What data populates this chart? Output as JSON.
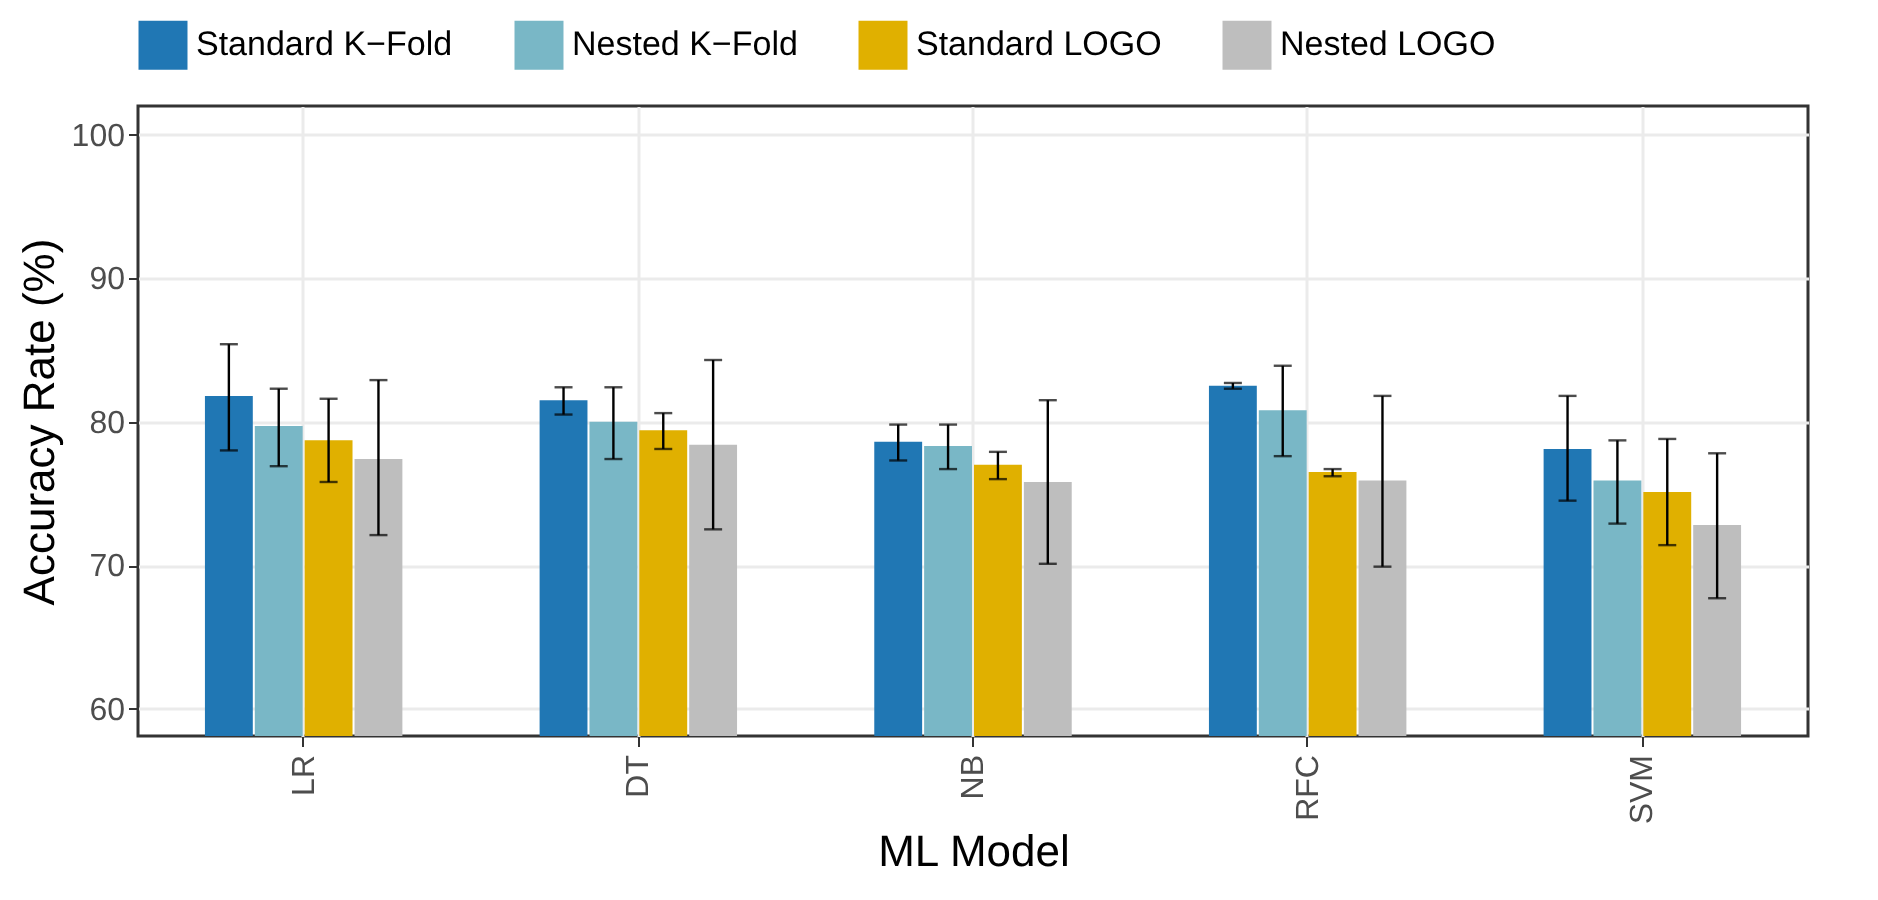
{
  "chart_data": {
    "type": "bar",
    "xlabel": "ML Model",
    "ylabel": "Accuracy Rate (%)",
    "categories": [
      "LR",
      "DT",
      "NB",
      "RFC",
      "SVM"
    ],
    "series": [
      {
        "name": "Standard K−Fold",
        "color": "#2077b4",
        "values": [
          81.8,
          81.5,
          78.6,
          82.5,
          78.1
        ],
        "errors": [
          [
            78.0,
            85.4
          ],
          [
            80.5,
            82.4
          ],
          [
            77.3,
            79.8
          ],
          [
            82.3,
            82.7
          ],
          [
            74.5,
            81.8
          ]
        ]
      },
      {
        "name": "Nested K−Fold",
        "color": "#79b7c6",
        "values": [
          79.7,
          80.0,
          78.3,
          80.8,
          75.9
        ],
        "errors": [
          [
            76.9,
            82.3
          ],
          [
            77.4,
            82.4
          ],
          [
            76.7,
            79.8
          ],
          [
            77.6,
            83.9
          ],
          [
            72.9,
            78.7
          ]
        ]
      },
      {
        "name": "Standard LOGO",
        "color": "#e0b000",
        "values": [
          78.7,
          79.4,
          77.0,
          76.5,
          75.1
        ],
        "errors": [
          [
            75.8,
            81.6
          ],
          [
            78.1,
            80.6
          ],
          [
            76.0,
            77.9
          ],
          [
            76.2,
            76.7
          ],
          [
            71.4,
            78.8
          ]
        ]
      },
      {
        "name": "Nested LOGO",
        "color": "#bebebe",
        "values": [
          77.4,
          78.4,
          75.8,
          75.9,
          72.8
        ],
        "errors": [
          [
            72.1,
            82.9
          ],
          [
            72.5,
            84.3
          ],
          [
            70.1,
            81.5
          ],
          [
            69.9,
            81.8
          ],
          [
            67.7,
            77.8
          ]
        ]
      }
    ],
    "ylim": [
      58.1,
      102.0
    ],
    "yticks": [
      60,
      70,
      80,
      90,
      100
    ],
    "grid": true,
    "legend": "top"
  }
}
